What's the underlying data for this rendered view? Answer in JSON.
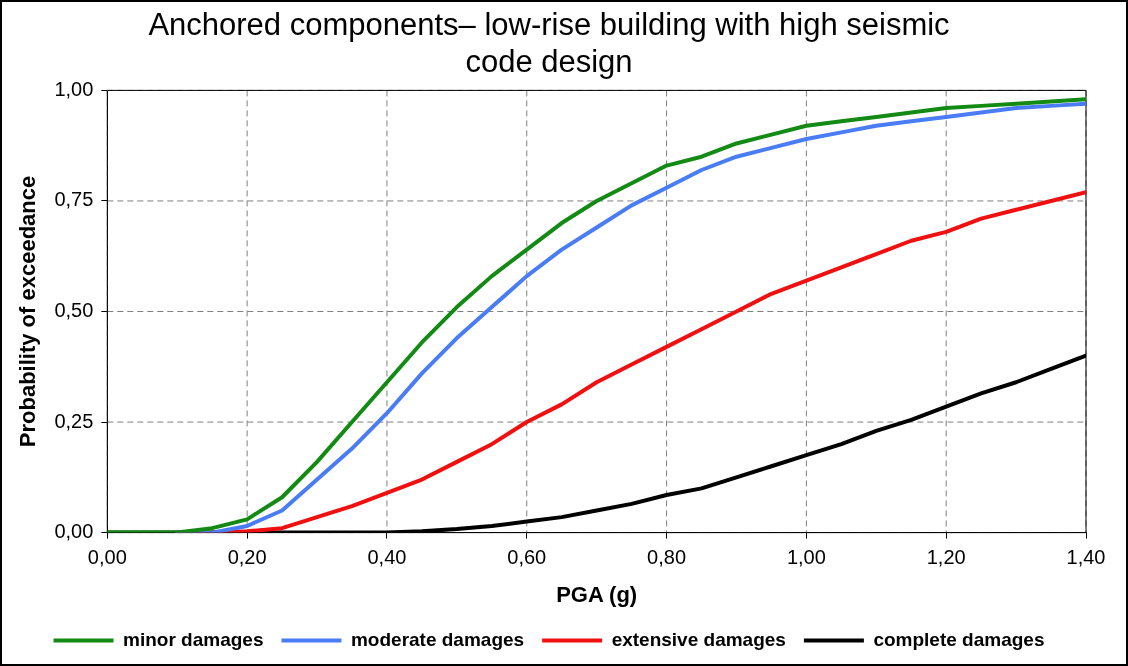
{
  "chart_data": {
    "type": "line",
    "title": "Anchored components– low-rise building with high seismic code design",
    "xlabel": "PGA (g)",
    "ylabel": "Probability of exceedance",
    "x": [
      0,
      0.05,
      0.1,
      0.15,
      0.2,
      0.25,
      0.3,
      0.35,
      0.4,
      0.45,
      0.5,
      0.55,
      0.6,
      0.65,
      0.7,
      0.75,
      0.8,
      0.85,
      0.9,
      0.95,
      1.0,
      1.05,
      1.1,
      1.15,
      1.2,
      1.25,
      1.3,
      1.35,
      1.4
    ],
    "series": [
      {
        "name": "minor damages",
        "color": "#138a13",
        "values": [
          0,
          0,
          0,
          0.01,
          0.03,
          0.08,
          0.16,
          0.25,
          0.34,
          0.43,
          0.51,
          0.58,
          0.64,
          0.7,
          0.75,
          0.79,
          0.83,
          0.85,
          0.88,
          0.9,
          0.92,
          0.93,
          0.94,
          0.95,
          0.96,
          0.965,
          0.97,
          0.975,
          0.98
        ]
      },
      {
        "name": "moderate damages",
        "color": "#4a7cf5",
        "values": [
          null,
          null,
          0,
          0,
          0.015,
          0.05,
          0.12,
          0.19,
          0.27,
          0.36,
          0.44,
          0.51,
          0.58,
          0.64,
          0.69,
          0.74,
          0.78,
          0.82,
          0.85,
          0.87,
          0.89,
          0.905,
          0.92,
          0.93,
          0.94,
          0.95,
          0.96,
          0.965,
          0.97
        ]
      },
      {
        "name": "extensive damages",
        "color": "#f01010",
        "values": [
          null,
          null,
          0,
          0,
          0.003,
          0.01,
          0.035,
          0.06,
          0.09,
          0.12,
          0.16,
          0.2,
          0.25,
          0.29,
          0.34,
          0.38,
          0.42,
          0.46,
          0.5,
          0.54,
          0.57,
          0.6,
          0.63,
          0.66,
          0.68,
          0.71,
          0.73,
          0.75,
          0.77
        ]
      },
      {
        "name": "complete damages",
        "color": "#000000",
        "values": [
          0,
          0,
          0,
          0,
          0,
          0,
          0,
          0,
          0,
          0.003,
          0.008,
          0.015,
          0.025,
          0.035,
          0.05,
          0.065,
          0.085,
          0.1,
          0.125,
          0.15,
          0.175,
          0.2,
          0.23,
          0.255,
          0.285,
          0.315,
          0.34,
          0.37,
          0.4
        ]
      }
    ],
    "xlim": [
      0,
      1.4
    ],
    "xticks": [
      {
        "value": 0,
        "label": "0,00"
      },
      {
        "value": 0.2,
        "label": "0,20"
      },
      {
        "value": 0.4,
        "label": "0,40"
      },
      {
        "value": 0.6,
        "label": "0,60"
      },
      {
        "value": 0.8,
        "label": "0,80"
      },
      {
        "value": 1.0,
        "label": "1,00"
      },
      {
        "value": 1.2,
        "label": "1,20"
      },
      {
        "value": 1.4,
        "label": "1,40"
      }
    ],
    "ylim": [
      0,
      1
    ],
    "yticks": [
      {
        "value": 0,
        "label": "0,00"
      },
      {
        "value": 0.25,
        "label": "0,25"
      },
      {
        "value": 0.5,
        "label": "0,50"
      },
      {
        "value": 0.75,
        "label": "0,75"
      },
      {
        "value": 1,
        "label": "1,00"
      }
    ],
    "grid": true,
    "legend": "bottom",
    "marker": "none",
    "line_style": "solid"
  }
}
